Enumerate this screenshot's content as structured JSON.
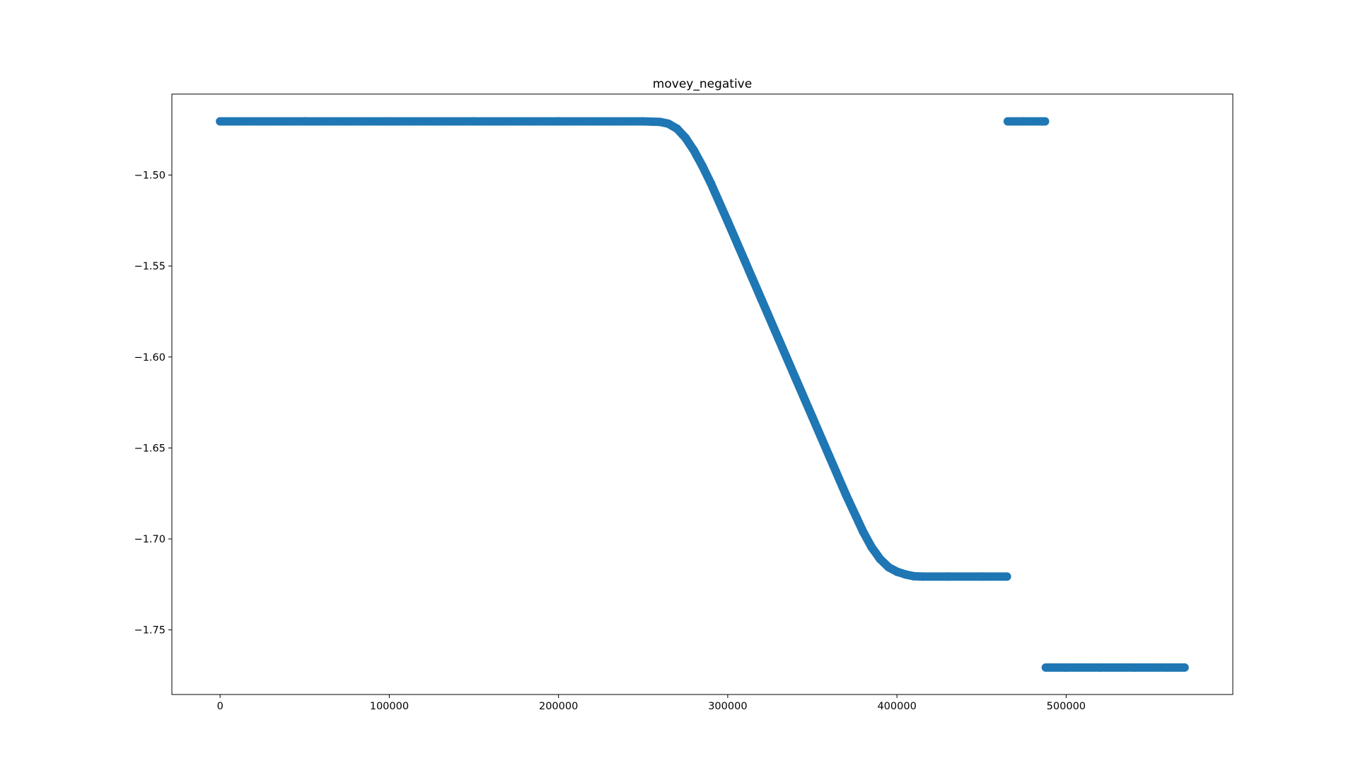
{
  "chart_data": {
    "type": "scatter",
    "title": "movey_negative",
    "xlabel": "",
    "ylabel": "",
    "xlim": [
      -28500,
      598500
    ],
    "ylim": [
      -1.7855,
      -1.4555
    ],
    "xticks": [
      {
        "value": 0,
        "label": "0"
      },
      {
        "value": 100000,
        "label": "100000"
      },
      {
        "value": 200000,
        "label": "200000"
      },
      {
        "value": 300000,
        "label": "300000"
      },
      {
        "value": 400000,
        "label": "400000"
      },
      {
        "value": 500000,
        "label": "500000"
      }
    ],
    "yticks": [
      {
        "value": -1.5,
        "label": "−1.50"
      },
      {
        "value": -1.55,
        "label": "−1.55"
      },
      {
        "value": -1.6,
        "label": "−1.60"
      },
      {
        "value": -1.65,
        "label": "−1.65"
      },
      {
        "value": -1.7,
        "label": "−1.70"
      },
      {
        "value": -1.75,
        "label": "−1.75"
      }
    ],
    "grid": false,
    "series": [
      {
        "color": "#1f77b4",
        "points": [
          [
            0,
            -1.4705
          ],
          [
            50000,
            -1.4705
          ],
          [
            100000,
            -1.4705
          ],
          [
            150000,
            -1.4705
          ],
          [
            200000,
            -1.4705
          ],
          [
            250000,
            -1.4705
          ],
          [
            260000,
            -1.4708
          ],
          [
            265000,
            -1.4718
          ],
          [
            270000,
            -1.4745
          ],
          [
            275000,
            -1.4795
          ],
          [
            280000,
            -1.4865
          ],
          [
            285000,
            -1.495
          ],
          [
            290000,
            -1.5045
          ],
          [
            300000,
            -1.5255
          ],
          [
            310000,
            -1.547
          ],
          [
            320000,
            -1.5685
          ],
          [
            330000,
            -1.59
          ],
          [
            340000,
            -1.6115
          ],
          [
            350000,
            -1.633
          ],
          [
            360000,
            -1.6545
          ],
          [
            370000,
            -1.676
          ],
          [
            380000,
            -1.696
          ],
          [
            385000,
            -1.7045
          ],
          [
            390000,
            -1.711
          ],
          [
            395000,
            -1.7155
          ],
          [
            400000,
            -1.718
          ],
          [
            405000,
            -1.7195
          ],
          [
            410000,
            -1.7205
          ],
          [
            415000,
            -1.7207
          ],
          [
            430000,
            -1.7207
          ],
          [
            450000,
            -1.7207
          ],
          [
            465000,
            -1.7207
          ],
          [
            465500,
            -1.4705
          ],
          [
            475000,
            -1.4705
          ],
          [
            487500,
            -1.4705
          ],
          [
            488000,
            -1.7707
          ],
          [
            500000,
            -1.7707
          ],
          [
            520000,
            -1.7707
          ],
          [
            540000,
            -1.7707
          ],
          [
            560000,
            -1.7707
          ],
          [
            570000,
            -1.7707
          ]
        ]
      }
    ]
  }
}
